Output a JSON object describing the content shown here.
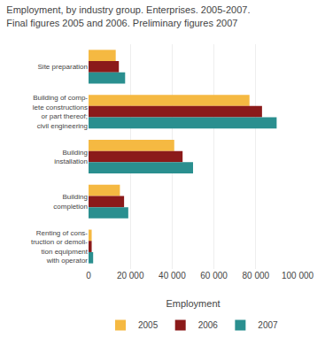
{
  "chart_data": {
    "type": "bar",
    "orientation": "horizontal",
    "title": "Employment, by industry group. Enterprises. 2005-2007.",
    "subtitle": "Final figures 2005 and 2006. Preliminary figures 2007",
    "categories": [
      "Site preparation",
      "Building of comp-\nlete constructions\nor part thereof;\ncivil engineering",
      "Building\ninstallation",
      "Building\ncompletion",
      "Renting of cons-\ntruction or demoli-\ntion equipment\nwith operator"
    ],
    "series": [
      {
        "name": "2005",
        "color": "#f5b942",
        "values": [
          13000,
          77000,
          41000,
          15000,
          1500
        ]
      },
      {
        "name": "2006",
        "color": "#8b1a1a",
        "values": [
          14500,
          83000,
          45000,
          17000,
          1500
        ]
      },
      {
        "name": "2007",
        "color": "#2a8f8f",
        "values": [
          17500,
          90000,
          50000,
          19000,
          2200
        ]
      }
    ],
    "xlabel": "Employment",
    "xlim": [
      0,
      100000
    ],
    "xticks": [
      0,
      {
        "value": 20000,
        "label": "20 000"
      },
      {
        "value": 40000,
        "label": "40 000"
      },
      {
        "value": 60000,
        "label": "60 000"
      },
      {
        "value": 80000,
        "label": "80 000"
      },
      {
        "value": 100000,
        "label": "100 000"
      }
    ],
    "grid": true,
    "legend": "bottom"
  }
}
